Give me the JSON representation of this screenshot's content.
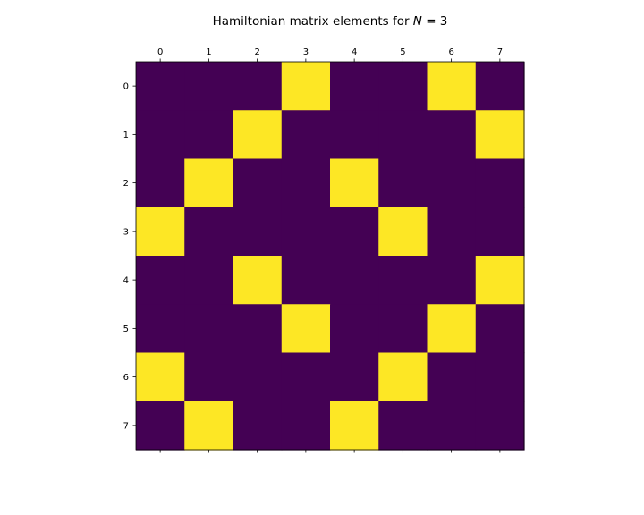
{
  "chart_data": {
    "type": "heatmap",
    "title": "Hamiltonian matrix elements for ",
    "title_math": {
      "var": "N",
      "rest": " = 3"
    },
    "x_ticks": [
      "0",
      "1",
      "2",
      "3",
      "4",
      "5",
      "6",
      "7"
    ],
    "y_ticks": [
      "0",
      "1",
      "2",
      "3",
      "4",
      "5",
      "6",
      "7"
    ],
    "x_axis_position": "top",
    "colormap": "viridis",
    "colors": {
      "low": "#440154",
      "high": "#fde725"
    },
    "grid": false,
    "legend": "none",
    "matrix": [
      [
        0,
        0,
        0,
        1,
        0,
        0,
        1,
        0
      ],
      [
        0,
        0,
        1,
        0,
        0,
        0,
        0,
        1
      ],
      [
        0,
        1,
        0,
        0,
        1,
        0,
        0,
        0
      ],
      [
        1,
        0,
        0,
        0,
        0,
        1,
        0,
        0
      ],
      [
        0,
        0,
        1,
        0,
        0,
        0,
        0,
        1
      ],
      [
        0,
        0,
        0,
        1,
        0,
        0,
        1,
        0
      ],
      [
        1,
        0,
        0,
        0,
        0,
        1,
        0,
        0
      ],
      [
        0,
        1,
        0,
        0,
        1,
        0,
        0,
        0
      ]
    ]
  }
}
